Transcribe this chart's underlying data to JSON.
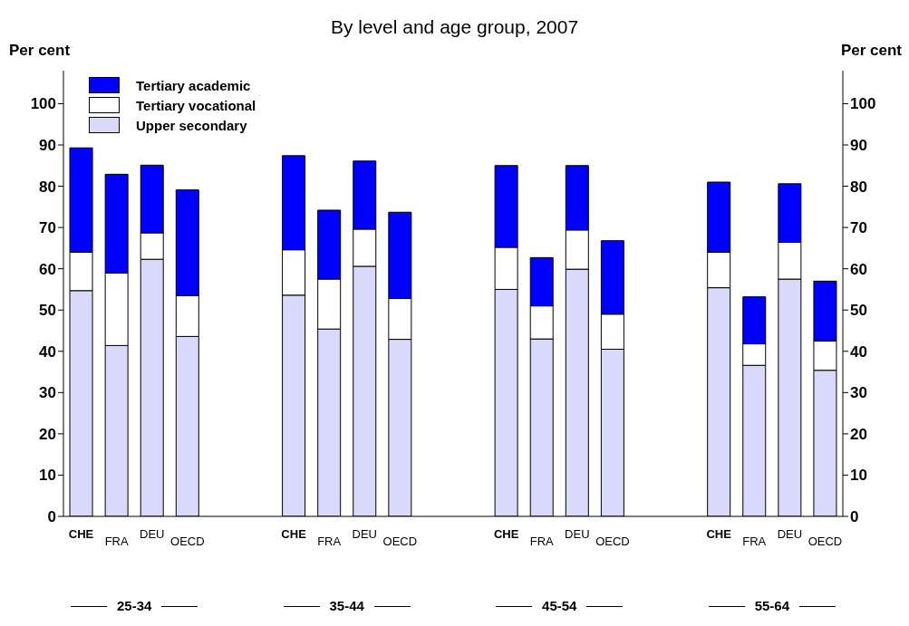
{
  "chart_data": {
    "type": "bar",
    "stacked": true,
    "title": "By level and age group, 2007",
    "ylabel": "Per cent",
    "y2label": "Per cent",
    "categories": [
      "CHE",
      "FRA",
      "DEU",
      "OECD",
      null,
      null,
      "CHE",
      "FRA",
      "DEU",
      "OECD",
      null,
      null,
      "CHE",
      "FRA",
      "DEU",
      "OECD",
      null,
      null,
      "CHE",
      "FRA",
      "DEU",
      "OECD"
    ],
    "series": [
      {
        "name": "Upper secondary",
        "color": "#d9d9fb",
        "values": [
          54.7,
          41.4,
          62.3,
          43.6,
          null,
          null,
          53.6,
          45.4,
          60.6,
          42.9,
          null,
          null,
          55.0,
          43.0,
          59.9,
          40.5,
          null,
          null,
          55.4,
          36.6,
          57.5,
          35.4
        ]
      },
      {
        "name": "Tertiary vocational",
        "color": "#ffffff",
        "values": [
          9.3,
          17.6,
          6.4,
          9.9,
          null,
          null,
          11.0,
          12.1,
          9.0,
          9.9,
          null,
          null,
          10.2,
          8.0,
          9.5,
          8.5,
          null,
          null,
          8.6,
          5.2,
          8.9,
          7.1
        ]
      },
      {
        "name": "Tertiary academic",
        "color": "#0000ff",
        "values": [
          25.3,
          23.9,
          16.4,
          25.6,
          null,
          null,
          22.8,
          16.7,
          16.5,
          20.9,
          null,
          null,
          19.8,
          11.7,
          15.6,
          17.8,
          null,
          null,
          17.0,
          11.4,
          14.2,
          14.5
        ]
      }
    ],
    "ylim": [
      0,
      108
    ],
    "yticks": [
      0,
      10,
      20,
      30,
      40,
      50,
      60,
      70,
      80,
      90,
      100
    ],
    "y2lim": [
      0,
      108
    ],
    "y2ticks": [
      0,
      10,
      20,
      30,
      40,
      50,
      60,
      70,
      80,
      90,
      100
    ],
    "legend": "top left",
    "grid": false,
    "annotations": [
      "25-34",
      "35-44",
      "45-54",
      "55-64"
    ]
  }
}
